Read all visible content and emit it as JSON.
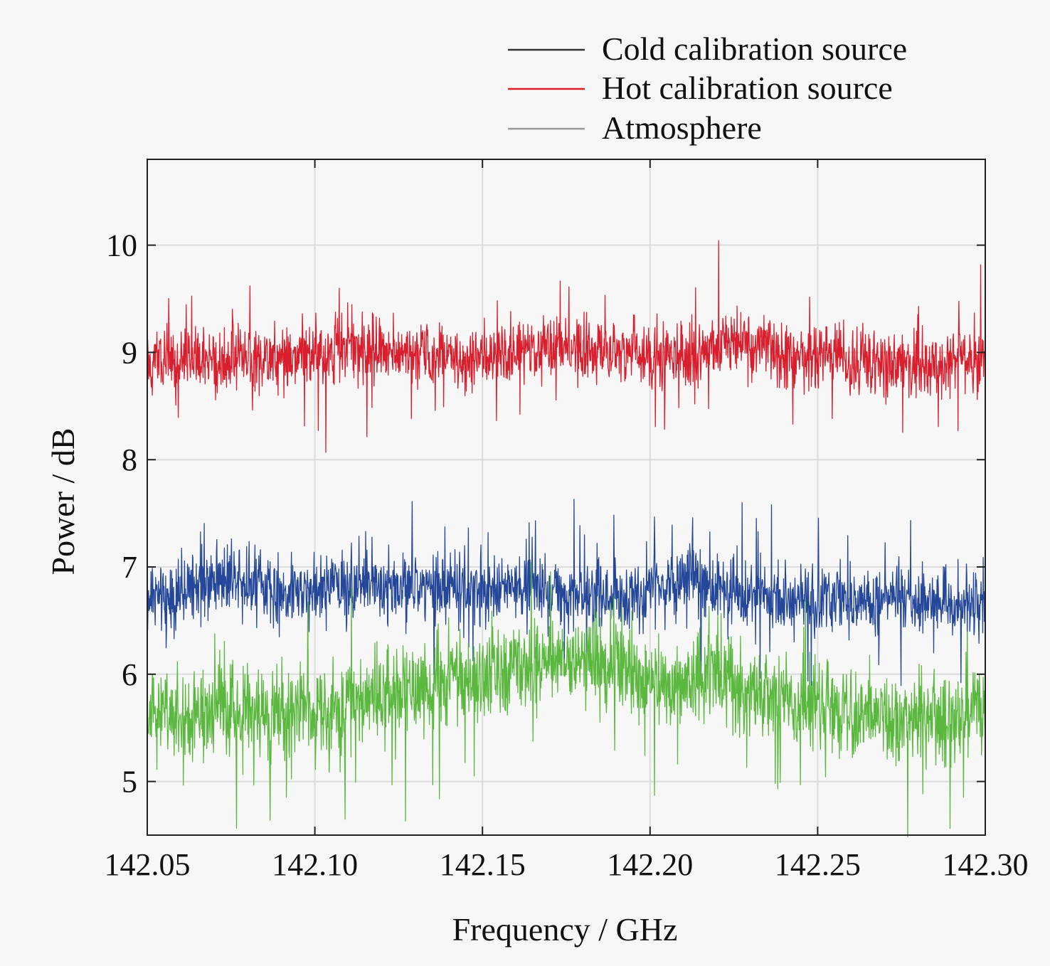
{
  "chart_data": {
    "type": "line",
    "title": "",
    "xlabel": "Frequency / GHz",
    "ylabel": "Power / dB",
    "xlim": [
      142.05,
      142.3
    ],
    "ylim": [
      4.5,
      10.8
    ],
    "xticks": [
      142.05,
      142.1,
      142.15,
      142.2,
      142.25,
      142.3
    ],
    "xtick_labels": [
      "142.05",
      "142.10",
      "142.15",
      "142.20",
      "142.25",
      "142.30"
    ],
    "yticks": [
      5,
      6,
      7,
      8,
      9,
      10
    ],
    "ytick_labels": [
      "5",
      "6",
      "7",
      "8",
      "9",
      "10"
    ],
    "grid": true,
    "legend_position": "top-right-outside",
    "series": [
      {
        "name": "Cold calibration source",
        "legend_color": "#333333",
        "color": "#24479a",
        "trend_x": [
          142.05,
          142.06,
          142.075,
          142.09,
          142.11,
          142.13,
          142.15,
          142.17,
          142.19,
          142.2,
          142.22,
          142.24,
          142.26,
          142.28,
          142.3
        ],
        "trend_y": [
          6.7,
          6.75,
          6.95,
          6.75,
          6.85,
          6.8,
          6.78,
          6.8,
          6.7,
          6.85,
          6.8,
          6.72,
          6.65,
          6.7,
          6.65
        ],
        "noise_amplitude": 0.32,
        "points": 2000
      },
      {
        "name": "Hot calibration source",
        "legend_color": "#d91f2d",
        "color": "#d91f2d",
        "trend_x": [
          142.05,
          142.07,
          142.09,
          142.11,
          142.13,
          142.15,
          142.17,
          142.19,
          142.21,
          142.225,
          142.24,
          142.26,
          142.28,
          142.3
        ],
        "trend_y": [
          8.9,
          8.92,
          8.95,
          9.05,
          9.0,
          8.95,
          9.05,
          9.02,
          8.95,
          9.12,
          8.98,
          8.92,
          8.88,
          8.9
        ],
        "noise_amplitude": 0.3,
        "points": 2000
      },
      {
        "name": "Atmosphere",
        "legend_color": "#999999",
        "color": "#5bb83f",
        "trend_x": [
          142.05,
          142.07,
          142.09,
          142.11,
          142.13,
          142.15,
          142.17,
          142.185,
          142.2,
          142.22,
          142.24,
          142.26,
          142.28,
          142.3
        ],
        "trend_y": [
          5.6,
          5.65,
          5.6,
          5.7,
          5.85,
          5.95,
          6.1,
          6.15,
          5.95,
          5.95,
          5.75,
          5.65,
          5.6,
          5.6
        ],
        "noise_amplitude": 0.42,
        "points": 2000
      }
    ]
  }
}
